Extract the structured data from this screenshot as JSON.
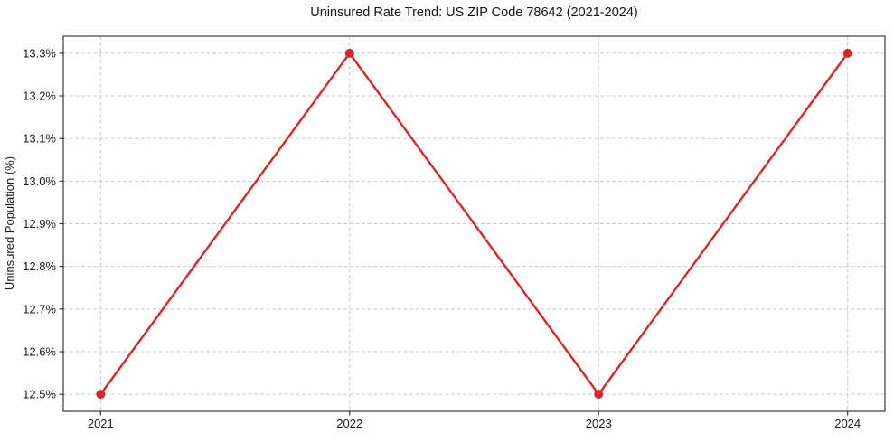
{
  "chart_data": {
    "type": "line",
    "title": "Uninsured Rate Trend: US ZIP Code 78642 (2021-2024)",
    "xlabel": "",
    "ylabel": "Uninsured Population (%)",
    "categories": [
      "2021",
      "2022",
      "2023",
      "2024"
    ],
    "series": [
      {
        "values": [
          12.5,
          13.3,
          12.5,
          13.3
        ],
        "color": "#d62728",
        "marker": "circle"
      }
    ],
    "yticks": [
      12.5,
      12.6,
      12.7,
      12.8,
      12.9,
      13.0,
      13.1,
      13.2,
      13.3
    ],
    "ytick_labels": [
      "12.5%",
      "12.6%",
      "12.7%",
      "12.8%",
      "12.9%",
      "13.0%",
      "13.1%",
      "13.2%",
      "13.3%"
    ],
    "ylim": [
      12.46,
      13.34
    ],
    "x_margin": 0.15,
    "grid": {
      "show": true,
      "color": "#c8c8c8",
      "dash": "4 2.6"
    },
    "legend": false,
    "colors": {
      "spine": "#262626",
      "text": "#1c1c1c",
      "background": "#ffffff"
    }
  }
}
